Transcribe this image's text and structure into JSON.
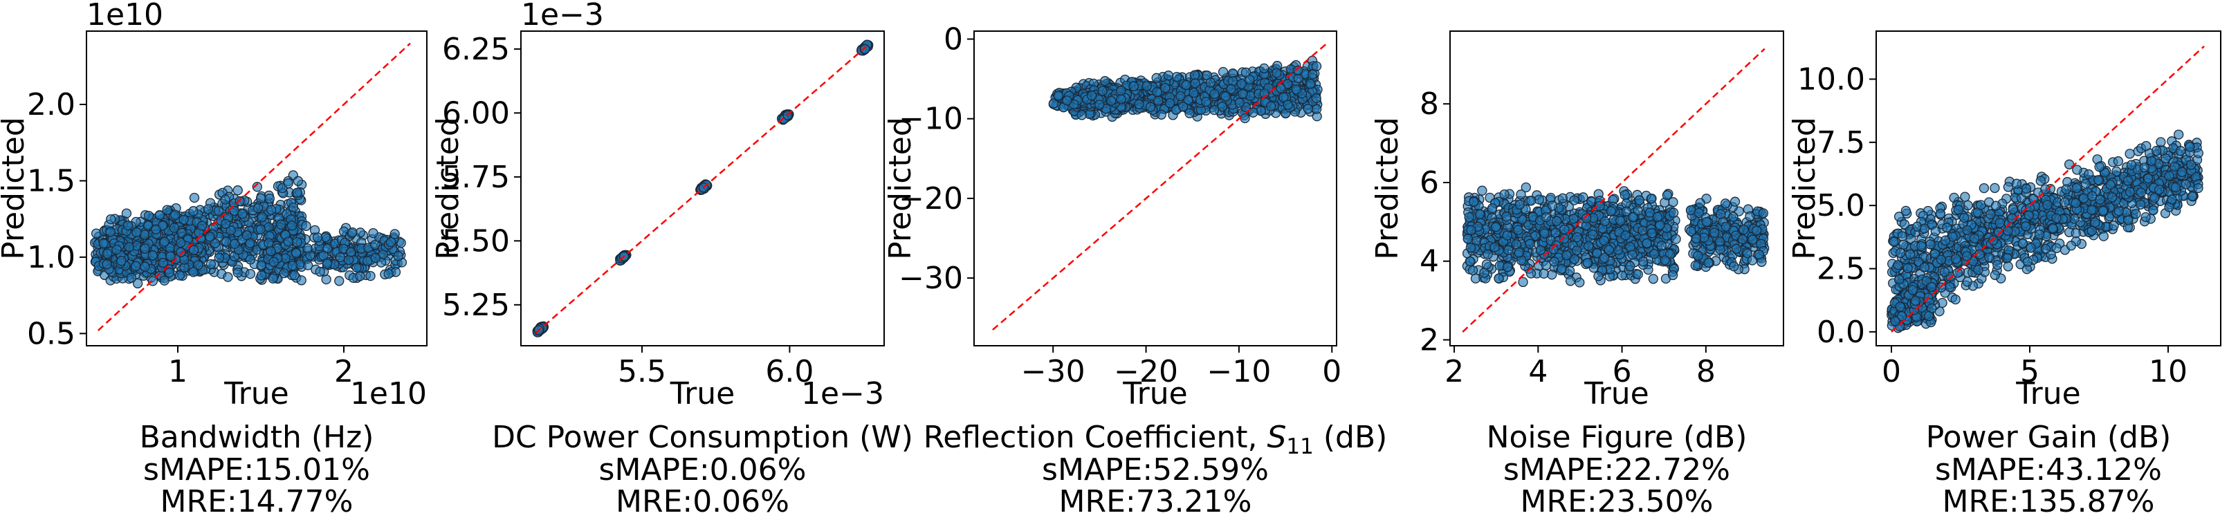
{
  "chart_data": [
    {
      "type": "scatter",
      "title": "Bandwidth (Hz)",
      "xlabel": "True",
      "ylabel": "Predicted",
      "metrics": [
        "sMAPE:15.01%",
        "MRE:14.77%"
      ],
      "scale_offset": "1e10",
      "x_offset_label": "1e10",
      "y_offset_label": "1e10",
      "xlim": [
        0.45,
        2.5
      ],
      "ylim": [
        0.42,
        2.48
      ],
      "xticks": [
        1,
        2
      ],
      "xtick_labels": [
        "1",
        "2"
      ],
      "yticks": [
        0.5,
        1.0,
        1.5,
        2.0
      ],
      "ytick_labels": [
        "0.5",
        "1.0",
        "1.5",
        "2.0"
      ],
      "reference_line": [
        0.52,
        2.4
      ],
      "point_clouds": [
        {
          "x": [
            0.5,
            1.75
          ],
          "y_low": [
            0.85,
            0.8
          ],
          "y_high": [
            1.2,
            1.62
          ],
          "count": 700
        },
        {
          "x": [
            0.55,
            1.15
          ],
          "y_low": [
            0.78,
            0.82
          ],
          "y_high": [
            1.3,
            1.35
          ],
          "count": 300
        },
        {
          "x": [
            1.5,
            2.35
          ],
          "y_low": [
            0.8,
            0.85
          ],
          "y_high": [
            1.25,
            1.2
          ],
          "count": 250
        }
      ]
    },
    {
      "type": "scatter",
      "title": "DC Power Consumption (W)",
      "xlabel": "True",
      "ylabel": "Predicted",
      "metrics": [
        "sMAPE:0.06%",
        "MRE:0.06%"
      ],
      "scale_offset": "1e−3",
      "x_offset_label": "1e−3",
      "y_offset_label": "1e−3",
      "xlim": [
        5.09,
        6.32
      ],
      "ylim": [
        5.09,
        6.32
      ],
      "xticks": [
        5.5,
        6.0
      ],
      "xtick_labels": [
        "5.5",
        "6.0"
      ],
      "yticks": [
        5.25,
        5.5,
        5.75,
        6.0,
        6.25
      ],
      "ytick_labels": [
        "5.25",
        "5.50",
        "5.75",
        "6.00",
        "6.25"
      ],
      "reference_line": [
        5.14,
        6.26
      ],
      "clusters": [
        5.155,
        5.435,
        5.71,
        5.985,
        6.255
      ]
    },
    {
      "type": "scatter",
      "title": "Reflection Coefficient, S11 (dB)",
      "title_parts": [
        "Reflection Coefficient, ",
        "S",
        "11",
        " (dB)"
      ],
      "xlabel": "True",
      "ylabel": "Predicted",
      "metrics": [
        "sMAPE:52.59%",
        "MRE:73.21%"
      ],
      "xlim": [
        -38.5,
        0.5
      ],
      "ylim": [
        -38.5,
        1.0
      ],
      "xticks": [
        -30,
        -20,
        -10,
        0
      ],
      "xtick_labels": [
        "−30",
        "−20",
        "−10",
        "0"
      ],
      "yticks": [
        -30,
        -20,
        -10,
        0
      ],
      "ytick_labels": [
        "−30",
        "−20",
        "−10",
        "0"
      ],
      "reference_line": [
        -36.5,
        -0.5
      ],
      "point_clouds": [
        {
          "x": [
            -28,
            -1.5
          ],
          "y_low": [
            -10,
            -10
          ],
          "y_high": [
            -5.5,
            -2.5
          ],
          "count": 900
        },
        {
          "x": [
            -30,
            -22
          ],
          "y_low": [
            -9,
            -9
          ],
          "y_high": [
            -6,
            -6
          ],
          "count": 120
        }
      ]
    },
    {
      "type": "scatter",
      "title": "Noise Figure (dB)",
      "xlabel": "True",
      "ylabel": "Predicted",
      "metrics": [
        "sMAPE:22.72%",
        "MRE:23.50%"
      ],
      "xlim": [
        1.9,
        9.85
      ],
      "ylim": [
        1.85,
        9.85
      ],
      "xticks": [
        2,
        4,
        6,
        8
      ],
      "xtick_labels": [
        "2",
        "4",
        "6",
        "8"
      ],
      "yticks": [
        2,
        4,
        6,
        8
      ],
      "ytick_labels": [
        "2",
        "4",
        "6",
        "8"
      ],
      "reference_line": [
        2.2,
        9.4
      ],
      "point_clouds": [
        {
          "x": [
            2.3,
            7.3
          ],
          "y_low": [
            3.4,
            3.4
          ],
          "y_high": [
            5.9,
            5.9
          ],
          "count": 900
        },
        {
          "x": [
            7.6,
            9.4
          ],
          "y_low": [
            3.6,
            3.6
          ],
          "y_high": [
            5.7,
            5.7
          ],
          "count": 260
        }
      ]
    },
    {
      "type": "scatter",
      "title": "Power Gain (dB)",
      "xlabel": "True",
      "ylabel": "Predicted",
      "metrics": [
        "sMAPE:43.12%",
        "MRE:135.87%"
      ],
      "xlim": [
        -0.55,
        11.9
      ],
      "ylim": [
        -0.55,
        11.9
      ],
      "xticks": [
        0,
        5,
        10
      ],
      "xtick_labels": [
        "0",
        "5",
        "10"
      ],
      "yticks": [
        0.0,
        2.5,
        5.0,
        7.5,
        10.0
      ],
      "ytick_labels": [
        "0.0",
        "2.5",
        "5.0",
        "7.5",
        "10.0"
      ],
      "reference_line": [
        0.0,
        11.3
      ],
      "point_clouds": [
        {
          "x": [
            0.0,
            11.1
          ],
          "y_low": [
            0.0,
            5.0
          ],
          "y_high": [
            4.8,
            8.1
          ],
          "count": 1100
        },
        {
          "x": [
            0.0,
            1.5
          ],
          "y_low": [
            0.0,
            0.1
          ],
          "y_high": [
            1.2,
            2.5
          ],
          "count": 200
        }
      ]
    }
  ],
  "style": {
    "marker_fill": "#1f77b4",
    "marker_edge": "#1a2a3a",
    "reference_color": "#ff0000"
  }
}
